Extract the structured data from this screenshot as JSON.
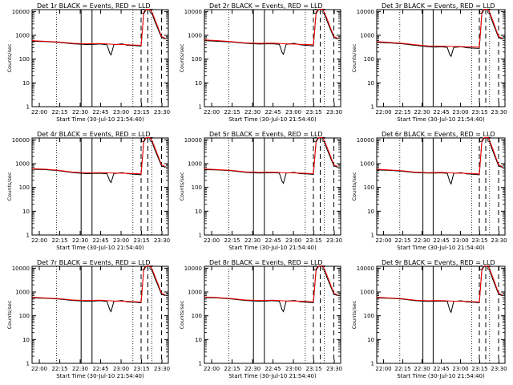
{
  "figure_title": "",
  "chart_data": [
    {
      "type": "line",
      "title": "Det 1r BLACK = Events, RED = LLD",
      "ylabel": "Counts/sec",
      "xlabel": "Start Time (30-Jul-10 21:54:40)",
      "x_ticks": [
        "22:00",
        "22:15",
        "22:30",
        "22:45",
        "23:00",
        "23:15",
        "23:30"
      ],
      "y_ticks": [
        "1",
        "10",
        "100",
        "1000",
        "10000"
      ],
      "ylim": [
        1,
        12000
      ],
      "xlim_minutes": [
        0,
        100
      ],
      "markers": [
        "O",
        "C"
      ],
      "series": [
        {
          "name": "Events",
          "color": "#000000",
          "x": [
            0,
            10,
            20,
            30,
            40,
            46,
            50,
            55,
            57,
            58,
            60,
            66,
            70,
            75,
            80,
            82,
            84,
            87,
            90,
            95,
            98
          ],
          "y": [
            560,
            540,
            500,
            440,
            410,
            420,
            430,
            400,
            180,
            150,
            400,
            440,
            380,
            370,
            350,
            9000,
            12000,
            12000,
            4000,
            800,
            700
          ]
        },
        {
          "name": "LLD",
          "color": "#ff0000",
          "x": [
            0,
            10,
            20,
            30,
            40,
            50,
            60,
            70,
            80,
            82,
            84,
            87,
            90,
            95,
            98
          ],
          "y": [
            600,
            560,
            520,
            460,
            440,
            450,
            420,
            400,
            380,
            9500,
            12500,
            12500,
            5000,
            900,
            750
          ]
        }
      ]
    },
    {
      "type": "line",
      "title": "Det 2r BLACK = Events, RED = LLD",
      "ylabel": "Counts/sec",
      "xlabel": "Start Time (30-Jul-10 21:54:40)",
      "x_ticks": [
        "22:00",
        "22:15",
        "22:30",
        "22:45",
        "23:00",
        "23:15",
        "23:30"
      ],
      "y_ticks": [
        "1",
        "10",
        "100",
        "1000",
        "10000"
      ],
      "ylim": [
        1,
        12000
      ],
      "xlim_minutes": [
        0,
        100
      ],
      "markers": [
        "O",
        "C"
      ],
      "series": [
        {
          "name": "Events",
          "color": "#000000",
          "x": [
            0,
            10,
            20,
            30,
            40,
            46,
            50,
            55,
            57,
            58,
            60,
            66,
            70,
            75,
            80,
            82,
            84,
            87,
            90,
            95,
            98
          ],
          "y": [
            600,
            560,
            520,
            460,
            430,
            440,
            440,
            420,
            190,
            160,
            420,
            460,
            400,
            380,
            360,
            9000,
            12000,
            12000,
            4000,
            800,
            700
          ]
        },
        {
          "name": "LLD",
          "color": "#ff0000",
          "x": [
            0,
            10,
            20,
            30,
            40,
            50,
            60,
            70,
            80,
            82,
            84,
            87,
            90,
            95,
            98
          ],
          "y": [
            640,
            600,
            540,
            480,
            460,
            470,
            440,
            420,
            400,
            9500,
            12500,
            12500,
            5000,
            900,
            750
          ]
        }
      ]
    },
    {
      "type": "line",
      "title": "Det 3r BLACK = Events, RED = LLD",
      "ylabel": "Counts/sec",
      "xlabel": "Start Time (30-Jul-10 21:54:40)",
      "x_ticks": [
        "22:00",
        "22:15",
        "22:30",
        "22:45",
        "23:00",
        "23:15",
        "23:30"
      ],
      "y_ticks": [
        "1",
        "10",
        "100",
        "1000",
        "10000"
      ],
      "ylim": [
        1,
        12000
      ],
      "xlim_minutes": [
        0,
        100
      ],
      "markers": [
        "O",
        "C"
      ],
      "series": [
        {
          "name": "Events",
          "color": "#000000",
          "x": [
            0,
            10,
            20,
            30,
            40,
            46,
            50,
            55,
            57,
            58,
            60,
            66,
            70,
            75,
            80,
            82,
            84,
            87,
            90,
            95,
            98
          ],
          "y": [
            500,
            480,
            440,
            380,
            330,
            320,
            330,
            310,
            150,
            130,
            310,
            330,
            300,
            290,
            280,
            9000,
            12000,
            12000,
            4000,
            800,
            700
          ]
        },
        {
          "name": "LLD",
          "color": "#ff0000",
          "x": [
            0,
            10,
            20,
            30,
            40,
            50,
            60,
            70,
            80,
            82,
            84,
            87,
            90,
            95,
            98
          ],
          "y": [
            540,
            500,
            460,
            400,
            360,
            350,
            340,
            330,
            320,
            9500,
            12500,
            12500,
            5000,
            900,
            750
          ]
        }
      ]
    },
    {
      "type": "line",
      "title": "Det 4r BLACK = Events, RED = LLD",
      "ylabel": "Counts/sec",
      "xlabel": "Start Time (30-Jul-10 21:54:40)",
      "x_ticks": [
        "22:00",
        "22:15",
        "22:30",
        "22:45",
        "23:00",
        "23:15",
        "23:30"
      ],
      "y_ticks": [
        "1",
        "10",
        "100",
        "1000",
        "10000"
      ],
      "ylim": [
        1,
        12000
      ],
      "xlim_minutes": [
        0,
        100
      ],
      "markers": [
        "O",
        "C"
      ],
      "series": [
        {
          "name": "Events",
          "color": "#000000",
          "x": [
            0,
            10,
            20,
            30,
            40,
            46,
            50,
            55,
            57,
            58,
            60,
            66,
            70,
            75,
            80,
            82,
            84,
            87,
            90,
            95,
            98
          ],
          "y": [
            580,
            560,
            500,
            420,
            380,
            390,
            390,
            380,
            190,
            160,
            380,
            420,
            380,
            360,
            340,
            9000,
            12000,
            12000,
            4000,
            800,
            700
          ]
        },
        {
          "name": "LLD",
          "color": "#ff0000",
          "x": [
            0,
            10,
            20,
            30,
            40,
            50,
            60,
            70,
            80,
            82,
            84,
            87,
            90,
            95,
            98
          ],
          "y": [
            620,
            580,
            520,
            440,
            410,
            420,
            400,
            390,
            370,
            9500,
            12500,
            12500,
            5000,
            900,
            750
          ]
        }
      ]
    },
    {
      "type": "line",
      "title": "Det 5r BLACK = Events, RED = LLD",
      "ylabel": "Counts/sec",
      "xlabel": "Start Time (30-Jul-10 21:54:40)",
      "x_ticks": [
        "22:00",
        "22:15",
        "22:30",
        "22:45",
        "23:00",
        "23:15",
        "23:30"
      ],
      "y_ticks": [
        "1",
        "10",
        "100",
        "1000",
        "10000"
      ],
      "ylim": [
        1,
        12000
      ],
      "xlim_minutes": [
        0,
        100
      ],
      "markers": [
        "O",
        "C"
      ],
      "series": [
        {
          "name": "Events",
          "color": "#000000",
          "x": [
            0,
            10,
            20,
            30,
            40,
            46,
            50,
            55,
            57,
            58,
            60,
            66,
            70,
            75,
            80,
            82,
            84,
            87,
            90,
            95,
            98
          ],
          "y": [
            560,
            540,
            500,
            430,
            400,
            410,
            420,
            400,
            180,
            150,
            400,
            430,
            380,
            370,
            350,
            9000,
            12000,
            12000,
            4000,
            800,
            700
          ]
        },
        {
          "name": "LLD",
          "color": "#ff0000",
          "x": [
            0,
            10,
            20,
            30,
            40,
            50,
            60,
            70,
            80,
            82,
            84,
            87,
            90,
            95,
            98
          ],
          "y": [
            600,
            560,
            520,
            450,
            430,
            440,
            410,
            400,
            380,
            9500,
            12500,
            12500,
            5000,
            900,
            750
          ]
        }
      ]
    },
    {
      "type": "line",
      "title": "Det 6r BLACK = Events, RED = LLD",
      "ylabel": "Counts/sec",
      "xlabel": "Start Time (30-Jul-10 21:54:40)",
      "x_ticks": [
        "22:00",
        "22:15",
        "22:30",
        "22:45",
        "23:00",
        "23:15",
        "23:30"
      ],
      "y_ticks": [
        "1",
        "10",
        "100",
        "1000",
        "10000"
      ],
      "ylim": [
        1,
        12000
      ],
      "xlim_minutes": [
        0,
        100
      ],
      "markers": [
        "O",
        "C"
      ],
      "series": [
        {
          "name": "Events",
          "color": "#000000",
          "x": [
            0,
            10,
            20,
            30,
            40,
            46,
            50,
            55,
            57,
            58,
            60,
            66,
            70,
            75,
            80,
            82,
            84,
            87,
            90,
            95,
            98
          ],
          "y": [
            540,
            520,
            480,
            420,
            400,
            400,
            410,
            390,
            170,
            140,
            390,
            420,
            370,
            360,
            340,
            9000,
            12000,
            12000,
            4000,
            800,
            700
          ]
        },
        {
          "name": "LLD",
          "color": "#ff0000",
          "x": [
            0,
            10,
            20,
            30,
            40,
            50,
            60,
            70,
            80,
            82,
            84,
            87,
            90,
            95,
            98
          ],
          "y": [
            580,
            540,
            500,
            440,
            420,
            430,
            400,
            390,
            370,
            9500,
            12500,
            12500,
            5000,
            900,
            750
          ]
        }
      ]
    },
    {
      "type": "line",
      "title": "Det 7r BLACK = Events, RED = LLD",
      "ylabel": "Counts/sec",
      "xlabel": "Start Time (30-Jul-10 21:54:40)",
      "x_ticks": [
        "22:00",
        "22:15",
        "22:30",
        "22:45",
        "23:00",
        "23:15",
        "23:30"
      ],
      "y_ticks": [
        "1",
        "10",
        "100",
        "1000",
        "10000"
      ],
      "ylim": [
        1,
        12000
      ],
      "xlim_minutes": [
        0,
        100
      ],
      "markers": [
        "O",
        "C"
      ],
      "series": [
        {
          "name": "Events",
          "color": "#000000",
          "x": [
            0,
            10,
            20,
            30,
            40,
            46,
            50,
            55,
            57,
            58,
            60,
            66,
            70,
            75,
            80,
            82,
            84,
            87,
            90,
            95,
            98
          ],
          "y": [
            560,
            540,
            500,
            440,
            410,
            420,
            430,
            400,
            180,
            150,
            400,
            440,
            380,
            370,
            350,
            9000,
            12000,
            12000,
            4000,
            800,
            700
          ]
        },
        {
          "name": "LLD",
          "color": "#ff0000",
          "x": [
            0,
            10,
            20,
            30,
            40,
            50,
            60,
            70,
            80,
            82,
            84,
            87,
            90,
            95,
            98
          ],
          "y": [
            600,
            560,
            520,
            460,
            440,
            450,
            420,
            400,
            380,
            9500,
            12500,
            12500,
            5000,
            900,
            750
          ]
        }
      ]
    },
    {
      "type": "line",
      "title": "Det 8r BLACK = Events, RED = LLD",
      "ylabel": "Counts/sec",
      "xlabel": "Start Time (30-Jul-10 21:54:40)",
      "x_ticks": [
        "22:00",
        "22:15",
        "22:30",
        "22:45",
        "23:00",
        "23:15",
        "23:30"
      ],
      "y_ticks": [
        "1",
        "10",
        "100",
        "1000",
        "10000"
      ],
      "ylim": [
        1,
        12000
      ],
      "xlim_minutes": [
        0,
        100
      ],
      "markers": [
        "O",
        "C"
      ],
      "series": [
        {
          "name": "Events",
          "color": "#000000",
          "x": [
            0,
            10,
            20,
            30,
            40,
            46,
            50,
            55,
            57,
            58,
            60,
            66,
            70,
            75,
            80,
            82,
            84,
            87,
            90,
            95,
            98
          ],
          "y": [
            580,
            560,
            510,
            440,
            410,
            420,
            430,
            410,
            180,
            150,
            410,
            440,
            390,
            370,
            350,
            9000,
            12000,
            12000,
            4000,
            800,
            700
          ]
        },
        {
          "name": "LLD",
          "color": "#ff0000",
          "x": [
            0,
            10,
            20,
            30,
            40,
            50,
            60,
            70,
            80,
            82,
            84,
            87,
            90,
            95,
            98
          ],
          "y": [
            620,
            580,
            530,
            460,
            440,
            450,
            420,
            410,
            390,
            9500,
            12500,
            12500,
            5000,
            900,
            750
          ]
        }
      ]
    },
    {
      "type": "line",
      "title": "Det 9r BLACK = Events, RED = LLD",
      "ylabel": "Counts/sec",
      "xlabel": "Start Time (30-Jul-10 21:54:40)",
      "x_ticks": [
        "22:00",
        "22:15",
        "22:30",
        "22:45",
        "23:00",
        "23:15",
        "23:30"
      ],
      "y_ticks": [
        "1",
        "10",
        "100",
        "1000",
        "10000"
      ],
      "ylim": [
        1,
        12000
      ],
      "xlim_minutes": [
        0,
        100
      ],
      "markers": [
        "O",
        "C"
      ],
      "series": [
        {
          "name": "Events",
          "color": "#000000",
          "x": [
            0,
            10,
            20,
            30,
            40,
            46,
            50,
            55,
            57,
            58,
            60,
            66,
            70,
            75,
            80,
            82,
            84,
            87,
            90,
            95,
            98
          ],
          "y": [
            560,
            540,
            500,
            430,
            400,
            410,
            420,
            400,
            170,
            140,
            400,
            430,
            380,
            370,
            350,
            9000,
            12000,
            12000,
            4000,
            800,
            700
          ]
        },
        {
          "name": "LLD",
          "color": "#ff0000",
          "x": [
            0,
            10,
            20,
            30,
            40,
            50,
            60,
            70,
            80,
            82,
            84,
            87,
            90,
            95,
            98
          ],
          "y": [
            600,
            560,
            520,
            450,
            430,
            440,
            410,
            400,
            380,
            9500,
            12500,
            12500,
            5000,
            900,
            750
          ]
        }
      ]
    }
  ],
  "vlines": {
    "dotted_minutes": [
      10,
      70,
      80,
      85,
      95
    ],
    "solid_minutes": [
      22,
      30
    ],
    "dashed_minutes": [
      80,
      85,
      95
    ]
  }
}
